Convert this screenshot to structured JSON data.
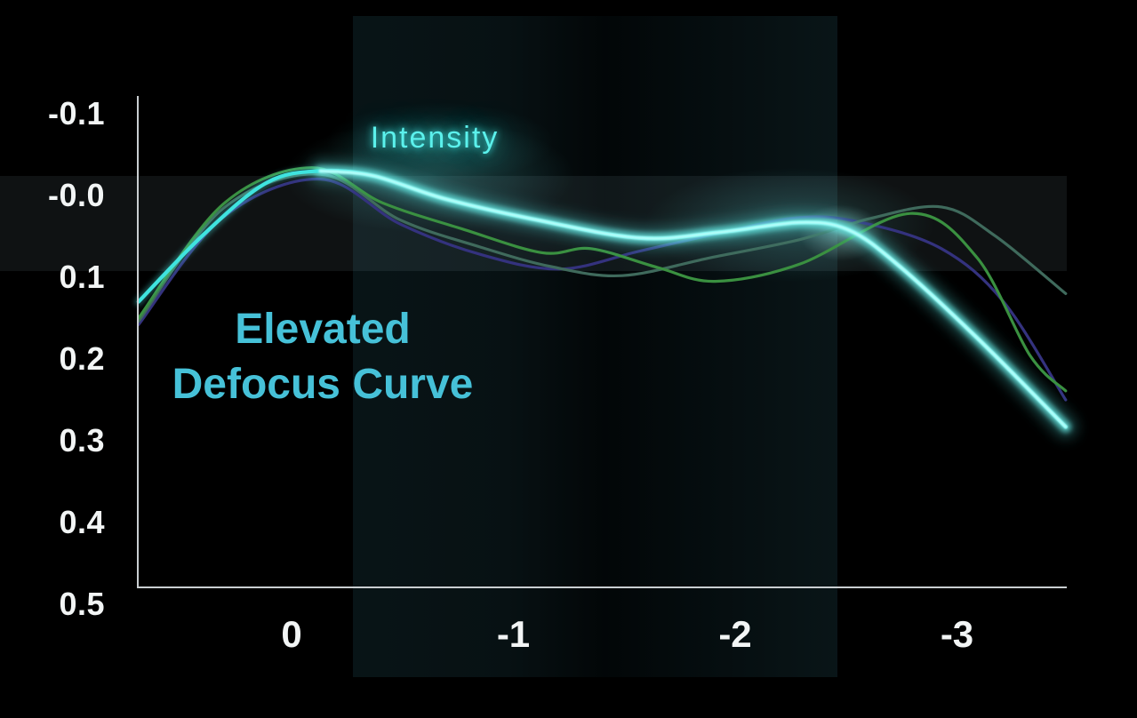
{
  "annotations": {
    "title_lines": [
      "Elevated",
      "Defocus Curve"
    ]
  },
  "colors": {
    "background": "#000000",
    "axis": "#c9ced1",
    "tick_text": "#f2f5f5",
    "title_text": "#46c1d8",
    "intensity_glow": "#4aece6",
    "intensity_core": "#b9fffb",
    "band_teal": "#0a272c"
  },
  "chart_data": {
    "type": "line",
    "title": "Elevated Defocus Curve",
    "xlabel": "",
    "ylabel": "",
    "x_tick_labels": [
      "0",
      "-1",
      "-2",
      "-3"
    ],
    "x_tick_values": [
      0,
      -1,
      -2,
      -3
    ],
    "y_tick_labels": [
      "-0.1",
      "-0.0",
      "0.1",
      "0.2",
      "0.3",
      "0.4",
      "0.5"
    ],
    "y_tick_values": [
      -0.1,
      0,
      0.1,
      0.2,
      0.3,
      0.4,
      0.5
    ],
    "x_range": [
      0.7,
      -3.5
    ],
    "y_range": [
      -0.1,
      0.5
    ],
    "y_increases_downward": true,
    "grid": false,
    "legend_position": "annotation-on-curve",
    "series": [
      {
        "name": "comparison-indigo",
        "label": "",
        "color": "#34327e",
        "points": [
          [
            0.69,
            0.158
          ],
          [
            0.31,
            0.027
          ],
          [
            -0.13,
            -0.02
          ],
          [
            -0.49,
            0.035
          ],
          [
            -0.85,
            0.072
          ],
          [
            -1.21,
            0.09
          ],
          [
            -1.57,
            0.068
          ],
          [
            -1.93,
            0.046
          ],
          [
            -2.29,
            0.027
          ],
          [
            -2.57,
            0.033
          ],
          [
            -2.93,
            0.065
          ],
          [
            -3.21,
            0.13
          ],
          [
            -3.49,
            0.25
          ]
        ]
      },
      {
        "name": "comparison-muted-teal",
        "label": "",
        "color": "#3f6a5c",
        "points": [
          [
            0.69,
            0.154
          ],
          [
            0.31,
            0.016
          ],
          [
            -0.13,
            -0.026
          ],
          [
            -0.49,
            0.03
          ],
          [
            -0.85,
            0.063
          ],
          [
            -1.17,
            0.087
          ],
          [
            -1.49,
            0.098
          ],
          [
            -1.89,
            0.076
          ],
          [
            -2.29,
            0.054
          ],
          [
            -2.61,
            0.028
          ],
          [
            -2.93,
            0.014
          ],
          [
            -3.17,
            0.049
          ],
          [
            -3.49,
            0.12
          ]
        ]
      },
      {
        "name": "comparison-green",
        "label": "",
        "color": "#3a9040",
        "points": [
          [
            0.69,
            0.15
          ],
          [
            0.31,
            0.011
          ],
          [
            -0.09,
            -0.034
          ],
          [
            -0.41,
            0.009
          ],
          [
            -0.77,
            0.041
          ],
          [
            -1.13,
            0.07
          ],
          [
            -1.35,
            0.065
          ],
          [
            -1.65,
            0.088
          ],
          [
            -1.91,
            0.105
          ],
          [
            -2.29,
            0.084
          ],
          [
            -2.79,
            0.022
          ],
          [
            -3.09,
            0.076
          ],
          [
            -3.33,
            0.196
          ],
          [
            -3.49,
            0.239
          ]
        ]
      },
      {
        "name": "intensity",
        "label": "Intensity",
        "color": "#3fe4df",
        "core": "#b9fffb",
        "highlight": true,
        "glow_from": 3,
        "points": [
          [
            0.69,
            0.13
          ],
          [
            0.39,
            0.046
          ],
          [
            0.11,
            -0.016
          ],
          [
            -0.13,
            -0.03
          ],
          [
            -0.37,
            -0.024
          ],
          [
            -0.69,
            0.004
          ],
          [
            -1.09,
            0.029
          ],
          [
            -1.57,
            0.052
          ],
          [
            -1.93,
            0.045
          ],
          [
            -2.29,
            0.033
          ],
          [
            -2.51,
            0.042
          ],
          [
            -2.73,
            0.084
          ],
          [
            -3.09,
            0.174
          ],
          [
            -3.49,
            0.283
          ]
        ]
      }
    ]
  }
}
